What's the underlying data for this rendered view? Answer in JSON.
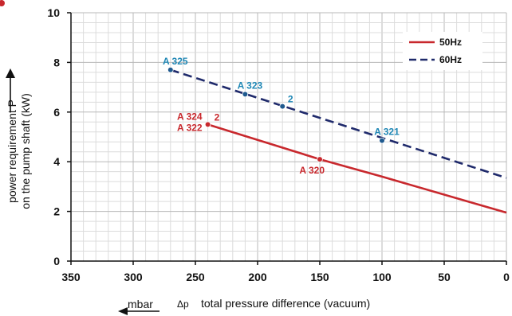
{
  "chart_data": {
    "type": "line",
    "xlabel": "total pressure difference (vacuum)",
    "xlabel_symbol": "Δp",
    "xunit": "mbar",
    "ylabel_line1": "power requirement P",
    "ylabel_line2": "on the pump shaft (kW)",
    "xlim": [
      350,
      0
    ],
    "ylim": [
      0,
      10
    ],
    "x_ticks": [
      "350",
      "300",
      "250",
      "200",
      "150",
      "100",
      "50",
      "0"
    ],
    "y_ticks": [
      "0",
      "2",
      "4",
      "6",
      "8",
      "10"
    ],
    "grid": true,
    "legend_position": "top-right",
    "series": [
      {
        "name": "50Hz",
        "color": "#c8282d",
        "style": "solid",
        "points": [
          [
            240,
            5.5
          ],
          [
            150,
            4.1
          ],
          [
            100,
            3.4
          ],
          [
            0,
            1.95
          ]
        ],
        "markers": [
          {
            "x": 240,
            "y": 5.5,
            "labels": [
              "A 324",
              "A 322"
            ],
            "extra": "2"
          },
          {
            "x": 150,
            "y": 4.1,
            "labels": [
              "A 320"
            ],
            "extra": ""
          }
        ]
      },
      {
        "name": "60Hz",
        "color": "#1f2a6b",
        "style": "dashed",
        "points": [
          [
            270,
            7.7
          ],
          [
            0,
            3.35
          ]
        ],
        "markers": [
          {
            "x": 270,
            "y": 7.7,
            "labels": [
              "A 325"
            ],
            "extra": ""
          },
          {
            "x": 210,
            "y": 6.72,
            "labels": [
              "A 323"
            ],
            "extra": ""
          },
          {
            "x": 180,
            "y": 6.23,
            "labels": [],
            "extra": "2"
          },
          {
            "x": 100,
            "y": 4.85,
            "labels": [
              "A 321"
            ],
            "extra": ""
          }
        ]
      }
    ],
    "label_color_50hz": "#c8282d",
    "label_color_60hz": "#1f87b5",
    "marker_color_60hz": "#1f5a8f"
  }
}
